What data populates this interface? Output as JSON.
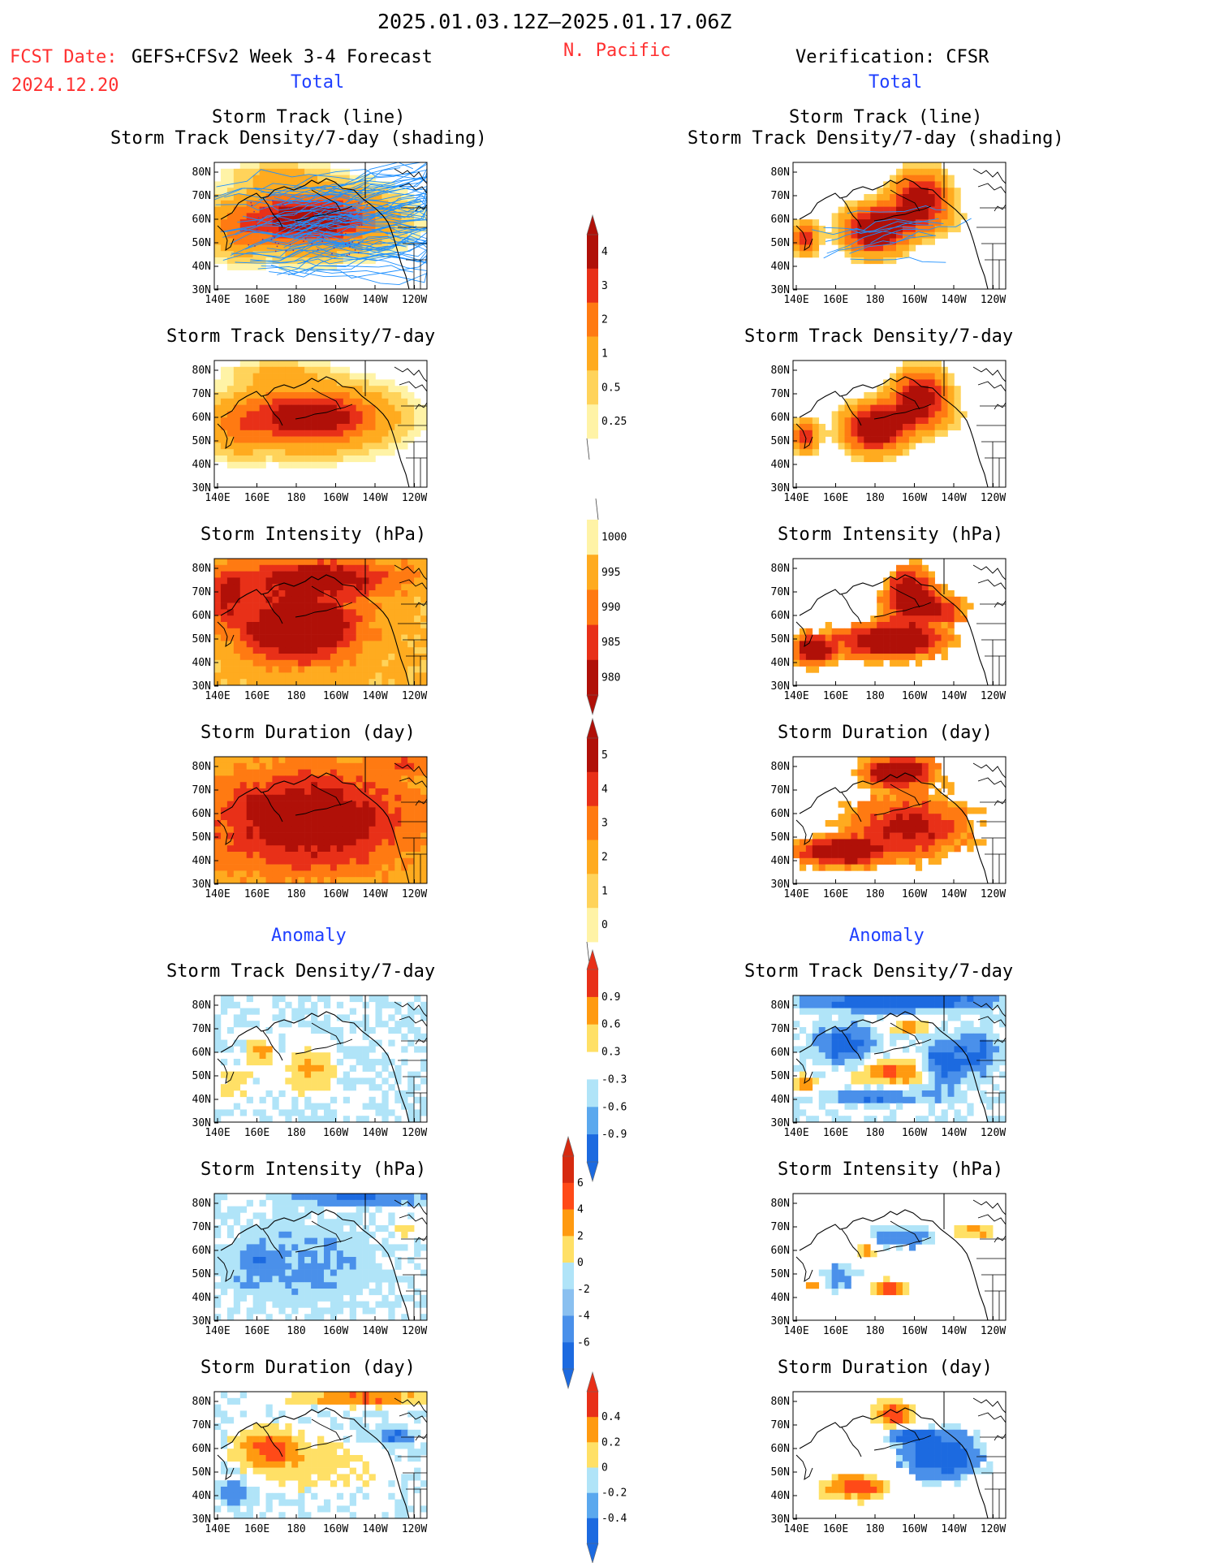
{
  "header": {
    "date_range": "2025.01.03.12Z–2025.01.17.06Z",
    "fcst_label": "FCST Date:",
    "fcst_model": "GEFS+CFSv2 Week 3-4 Forecast",
    "fcst_date": "2024.12.20",
    "region": "N. Pacific",
    "verification": "Verification: CFSR",
    "left_total": "Total",
    "right_total": "Total",
    "left_anomaly": "Anomaly",
    "right_anomaly": "Anomaly"
  },
  "colors": {
    "red_text": "#ff3030",
    "blue_text": "#1f3fff"
  },
  "axes": {
    "lon_ticks": [
      "140E",
      "160E",
      "180",
      "160W",
      "140W",
      "120W"
    ],
    "lat_ticks": [
      "80N",
      "70N",
      "60N",
      "50N",
      "40N",
      "30N"
    ],
    "lon_range": "140E–120W",
    "lat_range": "25N–85N"
  },
  "panels": {
    "fc_track": {
      "title1": "Storm Track (line)",
      "title2": "Storm Track Density/7-day (shading)"
    },
    "obs_track": {
      "title1": "Storm Track (line)",
      "title2": "Storm Track Density/7-day (shading)"
    },
    "fc_density": {
      "title": "Storm Track Density/7-day"
    },
    "obs_density": {
      "title": "Storm Track Density/7-day"
    },
    "fc_intensity": {
      "title": "Storm Intensity (hPa)"
    },
    "obs_intensity": {
      "title": "Storm Intensity (hPa)"
    },
    "fc_duration": {
      "title": "Storm Duration (day)"
    },
    "obs_duration": {
      "title": "Storm Duration (day)"
    },
    "fc_density_anom": {
      "title": "Storm Track Density/7-day"
    },
    "obs_density_anom": {
      "title": "Storm Track Density/7-day"
    },
    "fc_intensity_anom": {
      "title": "Storm Intensity (hPa)"
    },
    "obs_intensity_anom": {
      "title": "Storm Intensity (hPa)"
    },
    "fc_duration_anom": {
      "title": "Storm Duration (day)"
    },
    "obs_duration_anom": {
      "title": "Storm Duration (day)"
    }
  },
  "chart_data": [
    {
      "type": "heatmap",
      "name": "Forecast storm track density (total)",
      "units": "per 7-day",
      "levels": [
        0.25,
        0.5,
        1,
        2,
        3,
        4
      ],
      "max_region": "40N–60N, 160E–160W"
    },
    {
      "type": "heatmap",
      "name": "CFSR storm track density (total)",
      "units": "per 7-day",
      "levels": [
        0.25,
        0.5,
        1,
        2,
        3,
        4
      ],
      "max_region": "45N–60N, 170E–150W"
    },
    {
      "type": "heatmap",
      "name": "Storm intensity (total)",
      "units": "hPa",
      "levels": [
        1000,
        995,
        990,
        985,
        980
      ]
    },
    {
      "type": "heatmap",
      "name": "Storm duration (total)",
      "units": "day",
      "levels": [
        0,
        1,
        2,
        3,
        4,
        5
      ]
    },
    {
      "type": "heatmap",
      "name": "Storm track density anomaly",
      "units": "per 7-day",
      "levels": [
        -0.9,
        -0.6,
        -0.3,
        0.3,
        0.6,
        0.9
      ]
    },
    {
      "type": "heatmap",
      "name": "Storm intensity anomaly",
      "units": "hPa",
      "levels": [
        -6,
        -4,
        -2,
        0,
        2,
        4,
        6
      ]
    },
    {
      "type": "heatmap",
      "name": "Storm duration anomaly",
      "units": "day",
      "levels": [
        -0.4,
        -0.2,
        0,
        0.2,
        0.4
      ]
    }
  ],
  "colorbars": [
    {
      "labels": [
        "4",
        "3",
        "2",
        "1",
        "0.5",
        "0.25"
      ],
      "colors": [
        "#b01008",
        "#e83018",
        "#ff7a12",
        "#ffab1f",
        "#ffd35a",
        "#fff3a6"
      ]
    },
    {
      "labels": [
        "1000",
        "995",
        "990",
        "985",
        "980"
      ],
      "colors": [
        "#fff3a6",
        "#ffab1f",
        "#ff7a12",
        "#e83018",
        "#b01008"
      ]
    },
    {
      "labels": [
        "5",
        "4",
        "3",
        "2",
        "1",
        "0"
      ],
      "colors": [
        "#b01008",
        "#e83018",
        "#ff7a12",
        "#ffab1f",
        "#ffd35a",
        "#fff3a6"
      ]
    },
    {
      "labels": [
        "0.9",
        "0.6",
        "0.3",
        "-0.3",
        "-0.6",
        "-0.9"
      ],
      "colors": [
        "#e83018",
        "#ff9a10",
        "#ffe066",
        "#ffffff",
        "#b0e4f8",
        "#5aa8ee",
        "#1c6ae0"
      ]
    },
    {
      "labels": [
        "6",
        "4",
        "2",
        "0",
        "-2",
        "-4",
        "-6"
      ],
      "colors": [
        "#d62a10",
        "#ff4a18",
        "#ff9a10",
        "#ffe066",
        "#b0e4f8",
        "#8ac0f0",
        "#4a90ea",
        "#1c6ae0"
      ]
    },
    {
      "labels": [
        "0.4",
        "0.2",
        "0",
        "-0.2",
        "-0.4"
      ],
      "colors": [
        "#e83018",
        "#ff9a10",
        "#ffe066",
        "#b0e4f8",
        "#5aa8ee",
        "#1c6ae0"
      ]
    }
  ]
}
